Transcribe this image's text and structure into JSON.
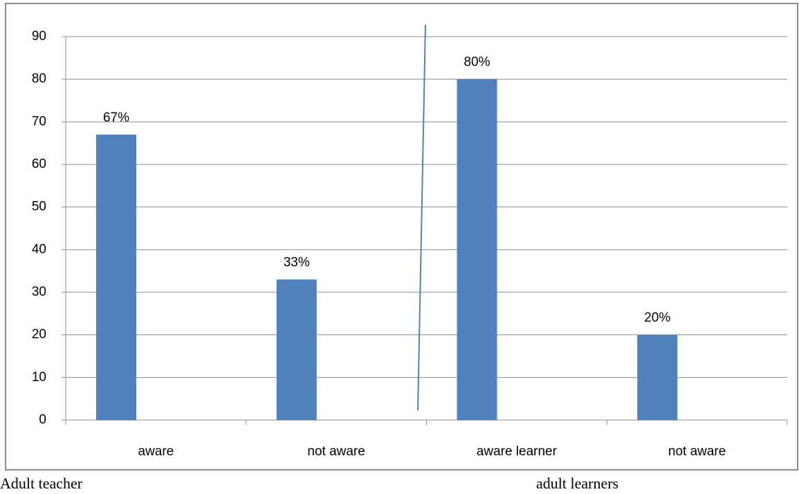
{
  "chart_data": {
    "type": "bar",
    "categories": [
      "aware",
      "not aware",
      "aware learner",
      "not aware"
    ],
    "values": [
      67,
      33,
      80,
      20
    ],
    "value_labels": [
      "67%",
      "33%",
      "80%",
      "20%"
    ],
    "color": "#4f81bd",
    "ylim": [
      0,
      90
    ],
    "yticks": [
      0,
      10,
      20,
      30,
      40,
      50,
      60,
      70,
      80,
      90
    ],
    "grid": true,
    "captions": [
      "Adult teacher",
      "adult learners"
    ]
  }
}
